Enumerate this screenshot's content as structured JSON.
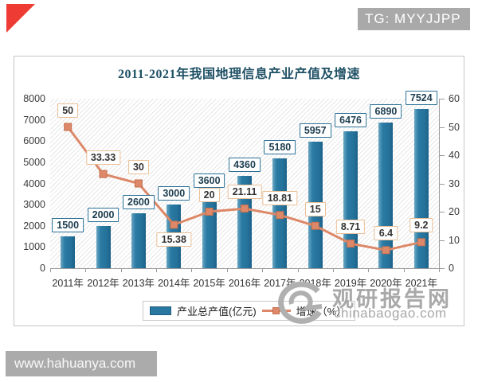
{
  "badges": {
    "tg": "TG: MYYJJPP",
    "site_bar": "www.hahuanya.com"
  },
  "watermark": {
    "brand": "观研报告网",
    "domain": "chinabaogao.com"
  },
  "colors": {
    "bar": "#2878a2",
    "line": "#dd8868",
    "title": "#1e5065",
    "badge_gray": "#a9a9a9",
    "corner_red": "#ee3b33"
  },
  "chart_data": {
    "type": "bar",
    "title": "2011-2021年我国地理信息产业产值及增速",
    "categories": [
      "2011年",
      "2012年",
      "2013年",
      "2014年",
      "2015年",
      "2016年",
      "2017年",
      "2018年",
      "2019年",
      "2020年",
      "2021年"
    ],
    "series": [
      {
        "name": "产业总产值(亿元)",
        "type": "bar",
        "axis": "left",
        "color": "#2878a2",
        "values": [
          1500,
          2000,
          2600,
          3000,
          3600,
          4360,
          5180,
          5957,
          6476,
          6890,
          7524
        ]
      },
      {
        "name": "增速（%）",
        "type": "line",
        "axis": "right",
        "color": "#dd8868",
        "values": [
          50,
          33.33,
          30,
          15.38,
          20,
          21.11,
          18.81,
          15,
          8.71,
          6.4,
          9.2
        ]
      }
    ],
    "left_axis": {
      "min": 0,
      "max": 8000,
      "step": 1000
    },
    "right_axis": {
      "min": 0,
      "max": 60,
      "step": 10
    },
    "grid": false,
    "legend_position": "bottom",
    "line_label_below_indices": [
      3
    ]
  }
}
